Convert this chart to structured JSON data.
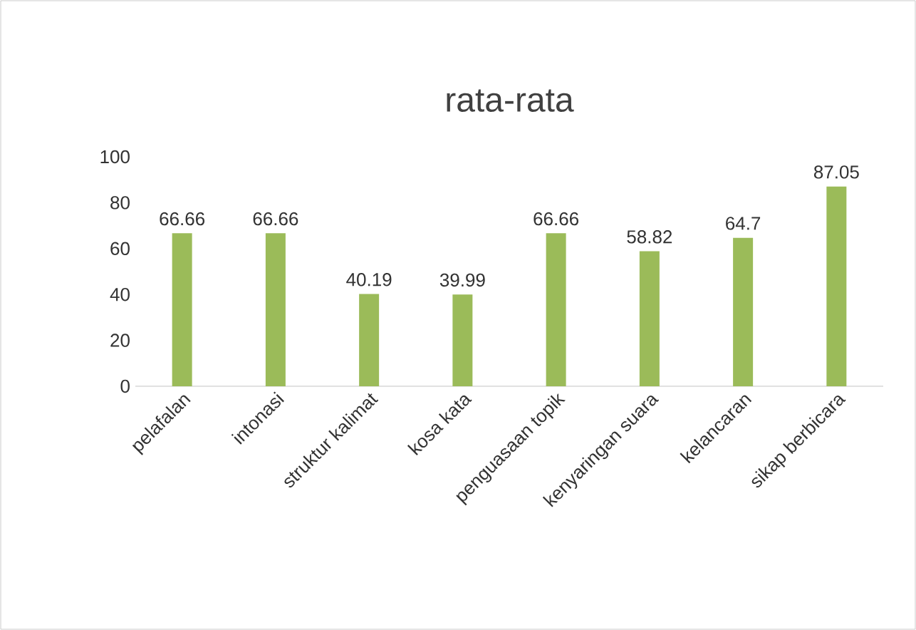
{
  "chart_data": {
    "type": "bar",
    "title": "rata-rata",
    "categories": [
      "pelafalan",
      "intonasi",
      "struktur kalimat",
      "kosa kata",
      "penguasaan topik",
      "kenyaringan suara",
      "kelancaran",
      "sikap berbicara"
    ],
    "values": [
      66.66,
      66.66,
      40.19,
      39.99,
      66.66,
      58.82,
      64.7,
      87.05
    ],
    "color": "#9bbb59",
    "ylim": [
      0,
      100
    ],
    "yticks": [
      0,
      20,
      40,
      60,
      80,
      100
    ],
    "data_labels": true
  }
}
